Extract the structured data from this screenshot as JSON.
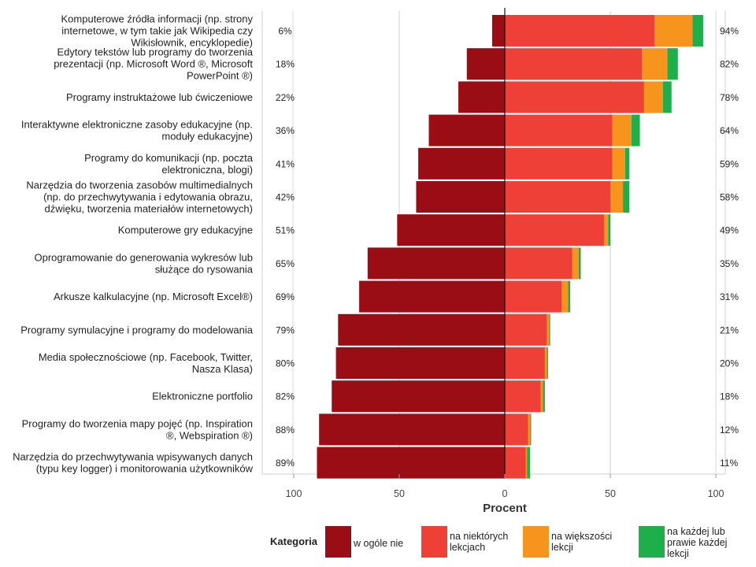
{
  "chart_data": {
    "type": "bar",
    "orientation": "horizontal-diverging",
    "stacked": true,
    "xlabel": "Procent",
    "xlim": [
      -100,
      100
    ],
    "xticks": [
      {
        "value": -100,
        "label": "100"
      },
      {
        "value": -50,
        "label": "50"
      },
      {
        "value": 0,
        "label": "0"
      },
      {
        "value": 50,
        "label": "50"
      },
      {
        "value": 100,
        "label": "100"
      }
    ],
    "grid": true,
    "legend": {
      "title": "Kategoria",
      "placement": "bottom"
    },
    "categories": [
      "Komputerowe źródła informacji (np. strony internetowe, w tym takie jak Wikipedia czy Wikisłownik, encyklopedie)",
      "Edytory tekstów lub programy do tworzenia prezentacji (np. Microsoft Word ®, Microsoft PowerPoint ®)",
      "Programy instruktażowe lub ćwiczeniowe",
      "Interaktywne elektroniczne zasoby edukacyjne (np. moduły edukacyjne)",
      "Programy do komunikacji (np. poczta elektroniczna, blogi)",
      "Narzędzia do tworzenia zasobów multimedialnych (np. do przechwytywania i edytowania obrazu, dźwięku, tworzenia materiałów internetowych)",
      "Komputerowe gry edukacyjne",
      "Oprogramowanie do generowania wykresów lub służące do rysowania",
      "Arkusze kalkulacyjne (np. Microsoft Excel®)",
      "Programy symulacyjne i programy do modelowania",
      "Media społecznościowe (np. Facebook, Twitter, Nasza Klasa)",
      "Elektroniczne portfolio",
      "Programy do tworzenia mapy pojęć (np. Inspiration ®, Webspiration ®)",
      "Narzędzia do przechwytywania wpisywanych danych (typu key logger) i monitorowania użytkowników"
    ],
    "category_lines": [
      [
        "Komputerowe źródła informacji (np. strony",
        "internetowe, w tym takie jak Wikipedia czy",
        "Wikisłownik, encyklopedie)"
      ],
      [
        "Edytory tekstów lub programy do tworzenia",
        "prezentacji (np. Microsoft Word ®, Microsoft",
        "PowerPoint ®)"
      ],
      [
        "Programy instruktażowe lub ćwiczeniowe"
      ],
      [
        "Interaktywne elektroniczne zasoby edukacyjne (np.",
        "moduły edukacyjne)"
      ],
      [
        "Programy do komunikacji (np. poczta",
        "elektroniczna, blogi)"
      ],
      [
        "Narzędzia do tworzenia zasobów multimedialnych",
        "(np. do przechwytywania i edytowania obrazu,",
        "dźwięku, tworzenia materiałów internetowych)"
      ],
      [
        "Komputerowe gry edukacyjne"
      ],
      [
        "Oprogramowanie do generowania wykresów lub",
        "służące do rysowania"
      ],
      [
        "Arkusze kalkulacyjne (np. Microsoft Excel®)"
      ],
      [
        "Programy symulacyjne i programy do modelowania"
      ],
      [
        "Media społecznościowe (np. Facebook, Twitter,",
        "Nasza Klasa)"
      ],
      [
        "Elektroniczne portfolio"
      ],
      [
        "Programy do tworzenia mapy pojęć (np. Inspiration",
        "®, Webspiration ®)"
      ],
      [
        "Narzędzia do przechwytywania wpisywanych danych",
        "(typu key logger) i monitorowania użytkowników"
      ]
    ],
    "left_labels": [
      "6%",
      "18%",
      "22%",
      "36%",
      "41%",
      "42%",
      "51%",
      "65%",
      "69%",
      "79%",
      "80%",
      "82%",
      "88%",
      "89%"
    ],
    "right_labels": [
      "94%",
      "82%",
      "78%",
      "64%",
      "59%",
      "58%",
      "49%",
      "35%",
      "31%",
      "21%",
      "20%",
      "18%",
      "12%",
      "11%"
    ],
    "series": [
      {
        "name": "w ogóle nie",
        "color": "#9b0d14",
        "side": "negative",
        "values": [
          6,
          18,
          22,
          36,
          41,
          42,
          51,
          65,
          69,
          79,
          80,
          82,
          88,
          89
        ]
      },
      {
        "name": "na niektórych lekcjach",
        "color": "#ee4036",
        "side": "positive",
        "values": [
          71,
          65,
          66,
          51,
          51,
          50,
          47,
          32,
          27,
          20,
          19,
          17,
          11,
          10
        ]
      },
      {
        "name": "na większości lekcji",
        "color": "#f7941d",
        "side": "positive",
        "values": [
          18,
          12,
          9,
          9,
          6,
          6,
          2,
          3,
          3,
          1,
          1,
          1,
          1,
          0.5
        ]
      },
      {
        "name": "na każdej lub prawie każdej lekcji",
        "color": "#1faf4a",
        "side": "positive",
        "values": [
          5,
          5,
          4,
          4,
          2,
          3,
          1,
          1,
          1,
          0.5,
          0.5,
          1,
          0.5,
          1.5
        ]
      }
    ],
    "legend_lines": [
      [
        "w ogóle nie"
      ],
      [
        "na niektórych",
        "lekcjach"
      ],
      [
        "na większości",
        "lekcji"
      ],
      [
        "na każdej lub",
        "prawie każdej",
        "lekcji"
      ]
    ]
  }
}
